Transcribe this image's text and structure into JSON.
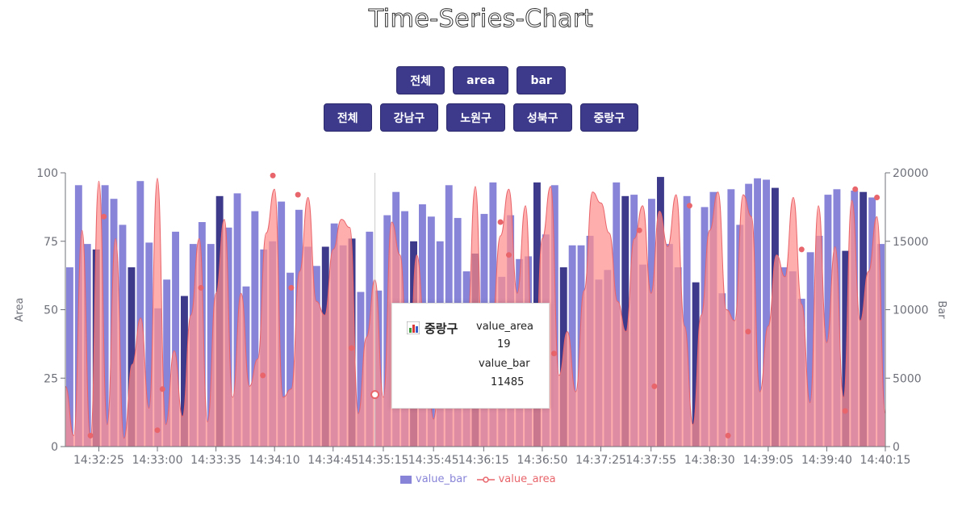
{
  "title": "Time-Series-Chart",
  "filters": {
    "type_buttons": [
      "전체",
      "area",
      "bar"
    ],
    "district_buttons": [
      "전체",
      "강남구",
      "노원구",
      "성북구",
      "중랑구"
    ]
  },
  "colors": {
    "button_bg": "#3d3a8c",
    "bar_light": "#8884d8",
    "bar_dark": "#3d3a8c",
    "area_fill": "#ff8f8f",
    "area_stroke": "#e8656b",
    "dot": "#e8656b"
  },
  "tooltip": {
    "icon": "bar-chart-icon",
    "name": "중랑구",
    "key_area": "value_area",
    "value_area": "19",
    "key_bar": "value_bar",
    "value_bar": "11485"
  },
  "legend": {
    "bar": "value_bar",
    "area": "value_area"
  },
  "chart_data": {
    "type": "bar",
    "title": "Time-Series-Chart",
    "left_axis": {
      "name": "Area",
      "ticks": [
        0,
        25,
        50,
        75,
        100
      ],
      "range": [
        0,
        100
      ]
    },
    "right_axis": {
      "name": "Bar",
      "ticks": [
        0,
        5000,
        10000,
        15000,
        20000
      ],
      "range": [
        0,
        20000
      ]
    },
    "x_tick_labels": [
      "14:32:25",
      "14:33:00",
      "14:33:35",
      "14:34:10",
      "14:34:45",
      "14:35:15",
      "14:35:45",
      "14:36:15",
      "14:36:50",
      "14:37:25",
      "14:37:55",
      "14:38:30",
      "14:39:05",
      "14:39:40",
      "14:40:15"
    ],
    "x_range": [
      "14:32:05",
      "14:40:15"
    ],
    "bar_values": [
      13100,
      19100,
      14800,
      14400,
      19100,
      18100,
      16200,
      13100,
      19400,
      14900,
      10100,
      12200,
      15700,
      11000,
      14800,
      16400,
      14800,
      18300,
      16000,
      18500,
      11700,
      17200,
      14400,
      15000,
      17900,
      12700,
      17300,
      14600,
      13200,
      14600,
      16300,
      14700,
      15200,
      11300,
      15700,
      11400,
      16900,
      18600,
      17200,
      15000,
      17700,
      16800,
      15000,
      19100,
      16700,
      12800,
      14100,
      17000,
      19300,
      12400,
      16900,
      13700,
      13900,
      19300,
      15500,
      19100,
      13100,
      14700,
      14700,
      15400,
      12200,
      12900,
      19300,
      18300,
      18400,
      13300,
      18100,
      19700,
      14800,
      13100,
      18300,
      12000,
      17500,
      18600,
      11200,
      18800,
      16200,
      19200,
      19600,
      19500,
      18900,
      13100,
      12800,
      10800,
      14200,
      15400,
      18400,
      18800,
      14300,
      18700,
      18600,
      18200,
      14800
    ],
    "bar_dark_indices": [
      3,
      7,
      13,
      17,
      29,
      32,
      39,
      46,
      53,
      56,
      63,
      67,
      71,
      80,
      88,
      90
    ],
    "area_values": [
      22,
      4,
      79,
      3,
      97,
      8,
      76,
      3,
      30,
      47,
      14,
      98,
      8,
      35,
      11,
      48,
      76,
      9,
      56,
      83,
      18,
      56,
      22,
      32,
      78,
      94,
      18,
      21,
      64,
      91,
      53,
      48,
      72,
      83,
      80,
      12,
      40,
      61,
      18,
      82,
      70,
      22,
      70,
      42,
      10,
      44,
      48,
      23,
      42,
      95,
      19,
      45,
      77,
      94,
      56,
      88,
      14,
      76,
      95,
      26,
      42,
      20,
      57,
      93,
      89,
      78,
      53,
      42,
      76,
      88,
      56,
      86,
      73,
      92,
      44,
      8,
      48,
      79,
      93,
      50,
      46,
      92,
      84,
      20,
      44,
      70,
      62,
      91,
      52,
      16,
      88,
      38,
      73,
      18,
      90,
      46,
      64,
      84,
      12
    ],
    "area_dots": [
      {
        "time": "14:32:20",
        "value": 4
      },
      {
        "time": "14:32:28",
        "value": 84
      },
      {
        "time": "14:33:00",
        "value": 6
      },
      {
        "time": "14:33:03",
        "value": 21
      },
      {
        "time": "14:33:26",
        "value": 58
      },
      {
        "time": "14:34:03",
        "value": 26
      },
      {
        "time": "14:34:09",
        "value": 99
      },
      {
        "time": "14:34:20",
        "value": 58
      },
      {
        "time": "14:34:24",
        "value": 92
      },
      {
        "time": "14:34:56",
        "value": 36
      },
      {
        "time": "14:35:10",
        "value": 19
      },
      {
        "time": "14:36:25",
        "value": 82
      },
      {
        "time": "14:36:30",
        "value": 70
      },
      {
        "time": "14:36:57",
        "value": 34
      },
      {
        "time": "14:37:48",
        "value": 79
      },
      {
        "time": "14:37:57",
        "value": 22
      },
      {
        "time": "14:38:18",
        "value": 88
      },
      {
        "time": "14:38:41",
        "value": 4
      },
      {
        "time": "14:38:53",
        "value": 42
      },
      {
        "time": "14:39:25",
        "value": 72
      },
      {
        "time": "14:39:51",
        "value": 13
      },
      {
        "time": "14:39:57",
        "value": 94
      },
      {
        "time": "14:40:10",
        "value": 91
      }
    ],
    "grid": false,
    "legend_position": "bottom-center"
  }
}
